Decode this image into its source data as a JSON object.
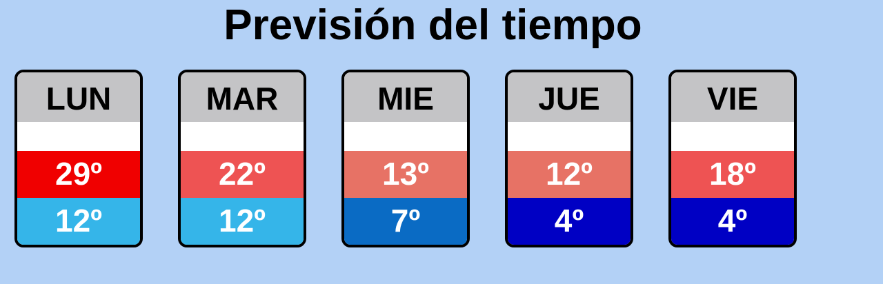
{
  "title": "Previsión del tiempo",
  "days": [
    {
      "label": "LUN",
      "max": "29º",
      "min": "12º",
      "max_color": "#f00000",
      "min_color": "#35b5e9"
    },
    {
      "label": "MAR",
      "max": "22º",
      "min": "12º",
      "max_color": "#ee5353",
      "min_color": "#35b5e9"
    },
    {
      "label": "MIE",
      "max": "13º",
      "min": "7º",
      "max_color": "#e77265",
      "min_color": "#0a6bc4"
    },
    {
      "label": "JUE",
      "max": "12º",
      "min": "4º",
      "max_color": "#e77265",
      "min_color": "#0000c4"
    },
    {
      "label": "VIE",
      "max": "18º",
      "min": "4º",
      "max_color": "#ee5353",
      "min_color": "#0000c4"
    }
  ]
}
